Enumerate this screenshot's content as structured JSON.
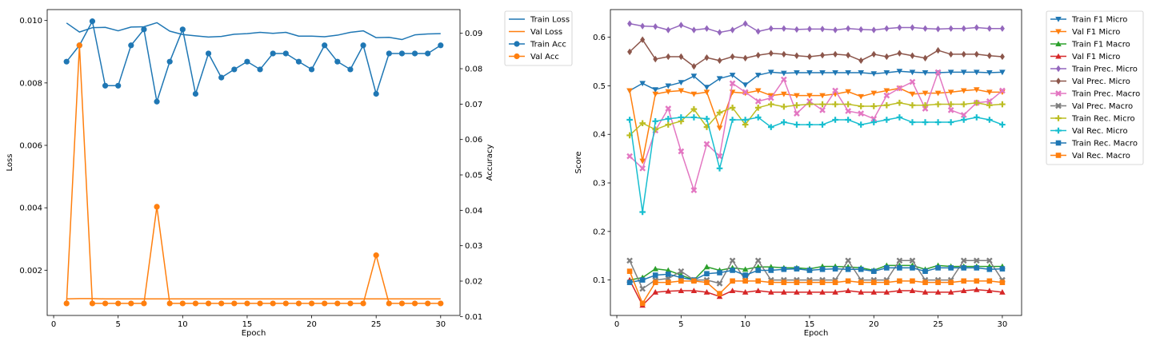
{
  "chart_data": [
    {
      "type": "line",
      "xlabel": "Epoch",
      "ylabel": "Loss",
      "y2label": "Accuracy",
      "xlim": [
        -0.5,
        31.5
      ],
      "ylim": [
        0.00055,
        0.01035
      ],
      "y2lim": [
        0.0103,
        0.0967
      ],
      "xticks": [
        0,
        5,
        10,
        15,
        20,
        25,
        30
      ],
      "yticks": [
        0.002,
        0.004,
        0.006,
        0.008,
        0.01
      ],
      "ytick_labels": [
        "0.002",
        "0.004",
        "0.006",
        "0.008",
        "0.010"
      ],
      "y2ticks": [
        0.01,
        0.02,
        0.03,
        0.04,
        0.05,
        0.06,
        0.07,
        0.08,
        0.09
      ],
      "y2tick_labels": [
        "0.01",
        "0.02",
        "0.03",
        "0.04",
        "0.05",
        "0.06",
        "0.07",
        "0.08",
        "0.09"
      ],
      "legend_position": "outside-right-top",
      "x": [
        1,
        2,
        3,
        4,
        5,
        6,
        7,
        8,
        9,
        10,
        11,
        12,
        13,
        14,
        15,
        16,
        17,
        18,
        19,
        20,
        21,
        22,
        23,
        24,
        25,
        26,
        27,
        28,
        29,
        30
      ],
      "series": [
        {
          "name": "Train Loss",
          "axis": "left",
          "color": "#1f77b4",
          "marker": "none",
          "values": [
            0.00992,
            0.00963,
            0.00977,
            0.00978,
            0.00967,
            0.00979,
            0.0098,
            0.00993,
            0.00966,
            0.00955,
            0.00951,
            0.00947,
            0.00949,
            0.00956,
            0.00958,
            0.00962,
            0.00959,
            0.00962,
            0.0095,
            0.0095,
            0.00948,
            0.00953,
            0.00962,
            0.00967,
            0.00945,
            0.00946,
            0.00939,
            0.00954,
            0.00957,
            0.00958
          ]
        },
        {
          "name": "Val Loss",
          "axis": "left",
          "color": "#ff7f0e",
          "marker": "none",
          "values": [
            0.00108,
            0.00109,
            0.00109,
            0.00108,
            0.00108,
            0.00108,
            0.00108,
            0.00108,
            0.00108,
            0.00108,
            0.00108,
            0.00108,
            0.00108,
            0.00108,
            0.00108,
            0.00108,
            0.00108,
            0.00108,
            0.00108,
            0.00108,
            0.00108,
            0.00108,
            0.00108,
            0.00108,
            0.00108,
            0.00108,
            0.00108,
            0.00108,
            0.00108,
            0.00108
          ]
        },
        {
          "name": "Train Acc",
          "axis": "right",
          "color": "#1f77b4",
          "marker": "circle",
          "values": [
            0.082,
            0.0866,
            0.0934,
            0.0752,
            0.0752,
            0.0866,
            0.0911,
            0.0707,
            0.082,
            0.0911,
            0.0729,
            0.0843,
            0.0775,
            0.0798,
            0.082,
            0.0798,
            0.0843,
            0.0843,
            0.082,
            0.0798,
            0.0866,
            0.082,
            0.0798,
            0.0866,
            0.0729,
            0.0843,
            0.0843,
            0.0843,
            0.0843,
            0.0866
          ]
        },
        {
          "name": "Val Acc",
          "axis": "right",
          "color": "#ff7f0e",
          "marker": "circle",
          "values": [
            0.0137,
            0.0866,
            0.0137,
            0.0137,
            0.0137,
            0.0137,
            0.0137,
            0.041,
            0.0137,
            0.0137,
            0.0137,
            0.0137,
            0.0137,
            0.0137,
            0.0137,
            0.0137,
            0.0137,
            0.0137,
            0.0137,
            0.0137,
            0.0137,
            0.0137,
            0.0137,
            0.0137,
            0.0273,
            0.0137,
            0.0137,
            0.0137,
            0.0137,
            0.0137
          ]
        }
      ]
    },
    {
      "type": "line",
      "xlabel": "Epoch",
      "ylabel": "Score",
      "xlim": [
        -0.5,
        31.5
      ],
      "ylim": [
        0.027,
        0.657
      ],
      "xticks": [
        0,
        5,
        10,
        15,
        20,
        25,
        30
      ],
      "yticks": [
        0.1,
        0.2,
        0.3,
        0.4,
        0.5,
        0.6
      ],
      "ytick_labels": [
        "0.1",
        "0.2",
        "0.3",
        "0.4",
        "0.5",
        "0.6"
      ],
      "legend_position": "outside-right-top",
      "x": [
        1,
        2,
        3,
        4,
        5,
        6,
        7,
        8,
        9,
        10,
        11,
        12,
        13,
        14,
        15,
        16,
        17,
        18,
        19,
        20,
        21,
        22,
        23,
        24,
        25,
        26,
        27,
        28,
        29,
        30
      ],
      "series": [
        {
          "name": "Train F1 Micro",
          "color": "#1f77b4",
          "marker": "tri_down",
          "values": [
            0.49,
            0.505,
            0.492,
            0.5,
            0.507,
            0.52,
            0.497,
            0.515,
            0.522,
            0.502,
            0.522,
            0.528,
            0.526,
            0.527,
            0.527,
            0.527,
            0.527,
            0.527,
            0.527,
            0.525,
            0.527,
            0.53,
            0.528,
            0.527,
            0.527,
            0.528,
            0.528,
            0.528,
            0.527,
            0.528
          ]
        },
        {
          "name": "Val F1 Micro",
          "color": "#ff7f0e",
          "marker": "tri_down",
          "values": [
            0.49,
            0.345,
            0.483,
            0.488,
            0.49,
            0.483,
            0.487,
            0.413,
            0.487,
            0.485,
            0.49,
            0.48,
            0.483,
            0.48,
            0.48,
            0.48,
            0.483,
            0.488,
            0.478,
            0.485,
            0.49,
            0.495,
            0.483,
            0.485,
            0.485,
            0.487,
            0.49,
            0.492,
            0.487,
            0.487
          ]
        },
        {
          "name": "Train F1 Macro",
          "color": "#2ca02c",
          "marker": "tri_up",
          "values": [
            0.1,
            0.105,
            0.123,
            0.12,
            0.11,
            0.1,
            0.127,
            0.12,
            0.125,
            0.122,
            0.127,
            0.127,
            0.125,
            0.125,
            0.123,
            0.128,
            0.128,
            0.127,
            0.125,
            0.12,
            0.13,
            0.13,
            0.13,
            0.122,
            0.13,
            0.128,
            0.128,
            0.128,
            0.128,
            0.128
          ]
        },
        {
          "name": "Val F1 Micro",
          "color": "#d62728",
          "marker": "tri_up",
          "values": [
            0.1,
            0.048,
            0.075,
            0.077,
            0.078,
            0.078,
            0.075,
            0.066,
            0.078,
            0.075,
            0.078,
            0.075,
            0.075,
            0.075,
            0.075,
            0.075,
            0.075,
            0.078,
            0.075,
            0.075,
            0.075,
            0.078,
            0.078,
            0.075,
            0.075,
            0.075,
            0.078,
            0.08,
            0.078,
            0.075
          ]
        },
        {
          "name": "Train Prec. Micro",
          "color": "#9467bd",
          "marker": "diamond",
          "values": [
            0.628,
            0.623,
            0.622,
            0.615,
            0.625,
            0.615,
            0.618,
            0.61,
            0.615,
            0.628,
            0.612,
            0.618,
            0.618,
            0.616,
            0.617,
            0.617,
            0.615,
            0.618,
            0.616,
            0.615,
            0.618,
            0.62,
            0.62,
            0.618,
            0.617,
            0.618,
            0.618,
            0.62,
            0.618,
            0.618
          ]
        },
        {
          "name": "Val Prec. Micro",
          "color": "#8c564b",
          "marker": "diamond",
          "values": [
            0.57,
            0.595,
            0.555,
            0.56,
            0.56,
            0.54,
            0.558,
            0.552,
            0.56,
            0.557,
            0.563,
            0.567,
            0.565,
            0.562,
            0.56,
            0.563,
            0.565,
            0.563,
            0.552,
            0.565,
            0.56,
            0.567,
            0.562,
            0.557,
            0.573,
            0.565,
            0.565,
            0.565,
            0.562,
            0.56
          ]
        },
        {
          "name": "Train Prec. Macro",
          "color": "#e377c2",
          "marker": "x",
          "values": [
            0.355,
            0.33,
            0.408,
            0.453,
            0.365,
            0.285,
            0.38,
            0.355,
            0.505,
            0.487,
            0.468,
            0.475,
            0.513,
            0.443,
            0.468,
            0.45,
            0.49,
            0.448,
            0.443,
            0.432,
            0.48,
            0.495,
            0.508,
            0.453,
            0.528,
            0.45,
            0.44,
            0.465,
            0.468,
            0.49
          ]
        },
        {
          "name": "Val Prec. Macro",
          "color": "#7f7f7f",
          "marker": "x",
          "values": [
            0.14,
            0.082,
            0.1,
            0.103,
            0.118,
            0.1,
            0.1,
            0.093,
            0.14,
            0.1,
            0.14,
            0.1,
            0.1,
            0.1,
            0.1,
            0.1,
            0.1,
            0.14,
            0.1,
            0.1,
            0.1,
            0.14,
            0.14,
            0.1,
            0.1,
            0.1,
            0.14,
            0.14,
            0.14,
            0.1
          ]
        },
        {
          "name": "Train Rec. Micro",
          "color": "#bcbd22",
          "marker": "plus",
          "values": [
            0.398,
            0.423,
            0.41,
            0.42,
            0.427,
            0.452,
            0.415,
            0.445,
            0.455,
            0.42,
            0.455,
            0.462,
            0.457,
            0.46,
            0.462,
            0.462,
            0.462,
            0.462,
            0.458,
            0.458,
            0.46,
            0.465,
            0.46,
            0.46,
            0.462,
            0.462,
            0.462,
            0.465,
            0.46,
            0.462
          ]
        },
        {
          "name": "Val Rec. Micro",
          "color": "#17becf",
          "marker": "plus",
          "values": [
            0.43,
            0.24,
            0.427,
            0.432,
            0.435,
            0.435,
            0.432,
            0.33,
            0.43,
            0.43,
            0.435,
            0.415,
            0.425,
            0.42,
            0.42,
            0.42,
            0.43,
            0.43,
            0.42,
            0.425,
            0.43,
            0.435,
            0.425,
            0.425,
            0.425,
            0.425,
            0.43,
            0.435,
            0.43,
            0.42
          ]
        },
        {
          "name": "Train Rec. Macro",
          "color": "#1f77b4",
          "marker": "square",
          "values": [
            0.095,
            0.1,
            0.11,
            0.112,
            0.105,
            0.1,
            0.113,
            0.115,
            0.12,
            0.11,
            0.12,
            0.12,
            0.122,
            0.123,
            0.12,
            0.122,
            0.123,
            0.122,
            0.122,
            0.118,
            0.125,
            0.125,
            0.125,
            0.118,
            0.125,
            0.125,
            0.125,
            0.125,
            0.122,
            0.123
          ]
        },
        {
          "name": "Val Rec. Macro",
          "color": "#ff7f0e",
          "marker": "square",
          "values": [
            0.118,
            0.052,
            0.095,
            0.095,
            0.098,
            0.098,
            0.095,
            0.072,
            0.098,
            0.098,
            0.098,
            0.095,
            0.095,
            0.095,
            0.095,
            0.095,
            0.095,
            0.098,
            0.095,
            0.095,
            0.095,
            0.098,
            0.098,
            0.095,
            0.095,
            0.095,
            0.098,
            0.098,
            0.098,
            0.095
          ]
        }
      ]
    }
  ]
}
